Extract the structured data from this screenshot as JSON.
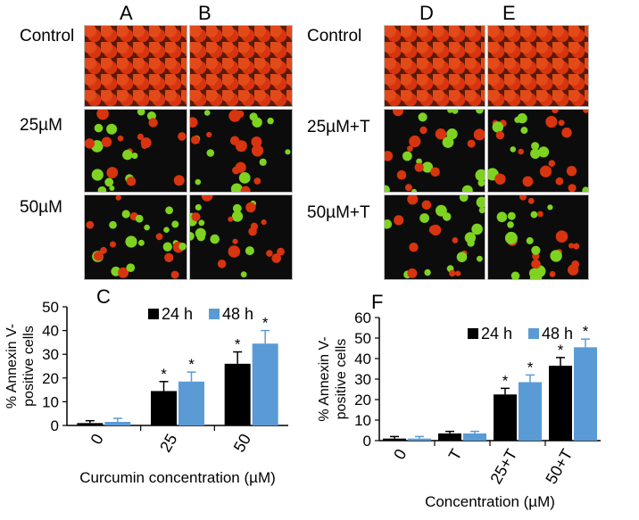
{
  "panels": {
    "letters": [
      "A",
      "B",
      "D",
      "E",
      "C",
      "F"
    ],
    "left_rows": [
      "Control",
      "25µM",
      "50µM"
    ],
    "right_rows": [
      "Control",
      "25µM+T",
      "50µM+T"
    ]
  },
  "colors": {
    "series_24h": "#000000",
    "series_48h": "#5b9bd5",
    "cell_red": "#d8340f",
    "cell_green": "#7ed321"
  },
  "chart_data": [
    {
      "type": "bar",
      "panel": "C",
      "categories": [
        "0",
        "25",
        "50"
      ],
      "series": [
        {
          "name": "24 h",
          "values": [
            1,
            14.5,
            26
          ],
          "errors": [
            1,
            4,
            5
          ]
        },
        {
          "name": "48 h",
          "values": [
            1.5,
            18.5,
            34.5
          ],
          "errors": [
            1.5,
            4,
            5.5
          ]
        }
      ],
      "significance": [
        [
          "",
          "*",
          "*"
        ],
        [
          "",
          "*",
          "*"
        ]
      ],
      "xlabel": "Curcumin concentration (µM)",
      "ylabel": "% Annexin V-positive cells",
      "ylim": [
        0,
        50
      ],
      "yticks": [
        0,
        10,
        20,
        30,
        40,
        50
      ],
      "legend": "top",
      "grid": false
    },
    {
      "type": "bar",
      "panel": "F",
      "categories": [
        "0",
        "T",
        "25+T",
        "50+T"
      ],
      "series": [
        {
          "name": "24 h",
          "values": [
            1,
            3.5,
            22.5,
            36.5
          ],
          "errors": [
            1,
            1,
            3,
            4
          ]
        },
        {
          "name": "48 h",
          "values": [
            1,
            3.5,
            28.5,
            45.5
          ],
          "errors": [
            1,
            1,
            3.5,
            4
          ]
        }
      ],
      "significance": [
        [
          "",
          "",
          "*",
          "*"
        ],
        [
          "",
          "",
          "*",
          "*"
        ]
      ],
      "xlabel": "Concentration (µM)",
      "ylabel": "% Annexin V-positive cells",
      "ylim": [
        0,
        60
      ],
      "yticks": [
        0,
        10,
        20,
        30,
        40,
        50,
        60
      ],
      "legend": "top",
      "grid": false
    }
  ]
}
